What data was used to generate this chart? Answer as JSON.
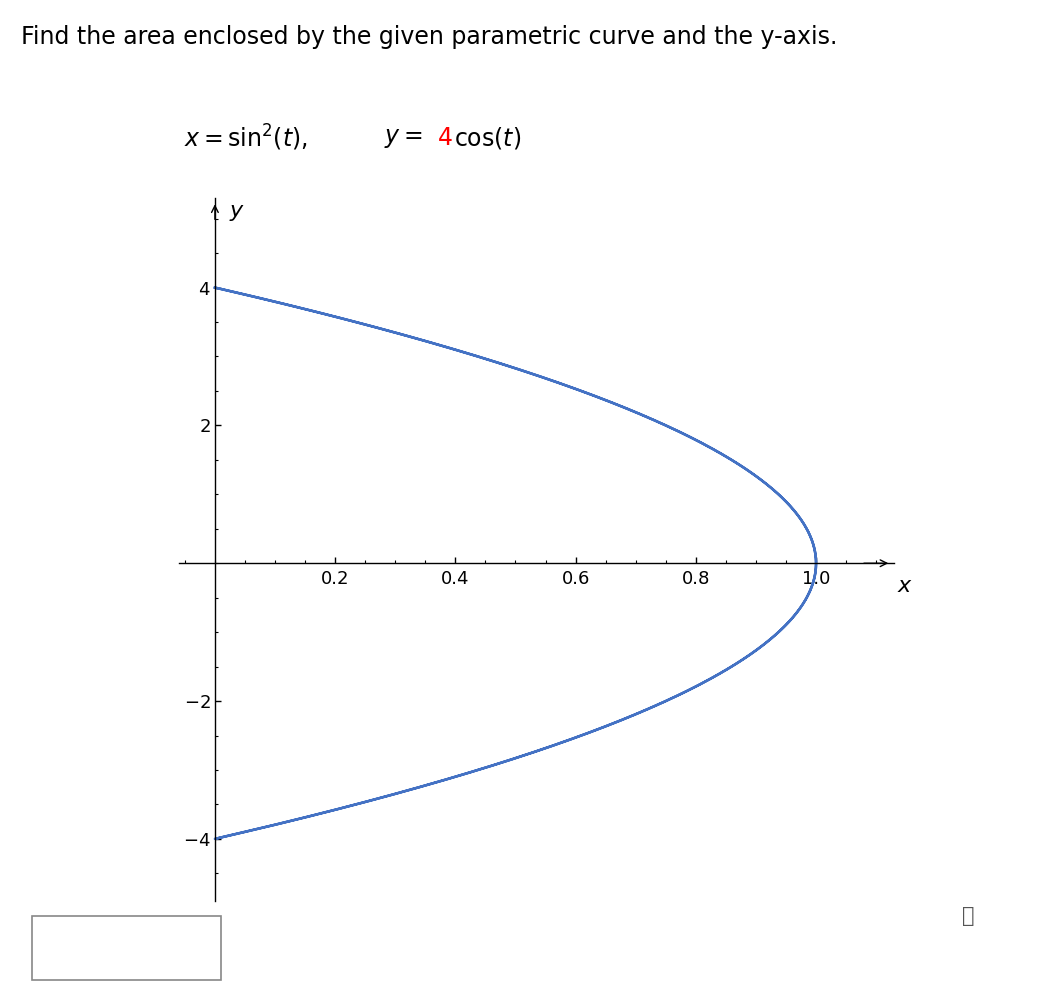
{
  "title_text": "Find the area enclosed by the given parametric curve and the y-axis.",
  "formula_4_color": "#ff0000",
  "curve_color": "#4472C4",
  "curve_linewidth": 1.8,
  "t_points": 2000,
  "xlim": [
    -0.06,
    1.13
  ],
  "ylim": [
    -4.9,
    5.3
  ],
  "xticks": [
    0.2,
    0.4,
    0.6,
    0.8,
    1.0
  ],
  "yticks": [
    -4,
    -2,
    2,
    4
  ],
  "xlabel": "x",
  "ylabel": "y",
  "background_color": "#ffffff",
  "title_fontsize": 17,
  "axis_label_fontsize": 16,
  "tick_fontsize": 13,
  "formula_fontsize": 17
}
